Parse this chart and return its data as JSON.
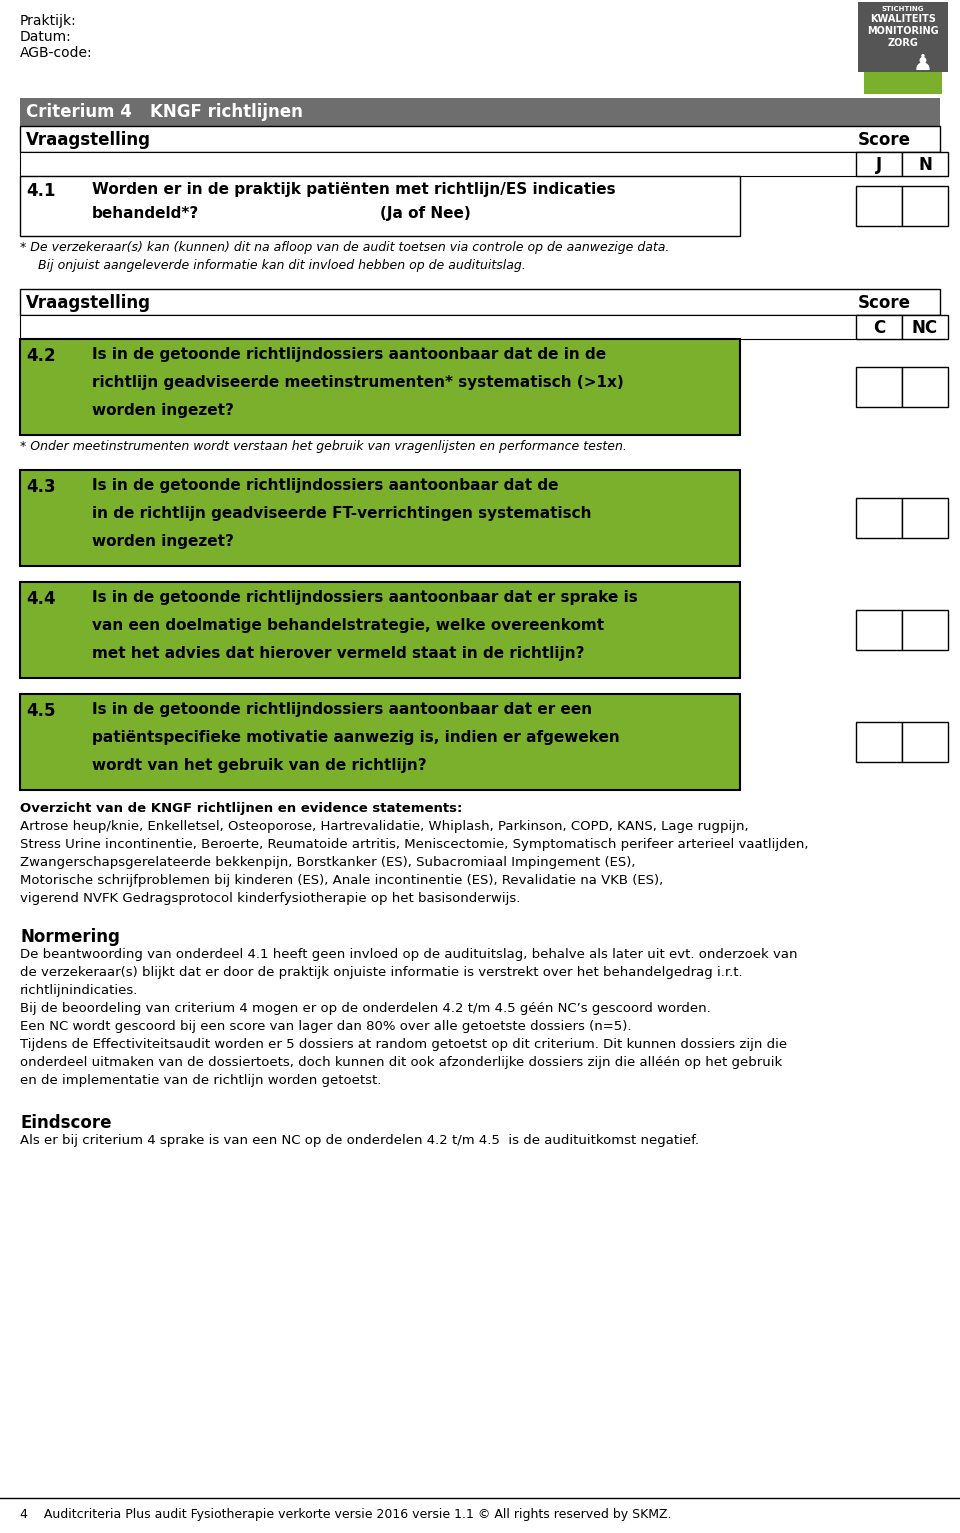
{
  "page_width": 9.6,
  "page_height": 15.33,
  "bg_color": "#ffffff",
  "header_lines": [
    "Praktijk:",
    "Datum:",
    "AGB-code:"
  ],
  "score_label": "Score",
  "q41_num": "4.1",
  "q41_text1": "Worden er in de praktijk patiënten met richtlijn/ES indicaties",
  "q41_text2": "behandeld*?",
  "q41_text3": "(Ja of Nee)",
  "q41_note1": "* De verzekeraar(s) kan (kunnen) dit na afloop van de audit toetsen via controle op de aanwezige data.",
  "q41_note2": "  Bij onjuist aangeleverde informatie kan dit invloed hebben op de audituitslag.",
  "q42_num": "4.2",
  "q42_lines": [
    "Is in de getoonde richtlijndossiers aantoonbaar dat de in de",
    "richtlijn geadviseerde meetinstrumenten* systematisch (>1x)",
    "worden ingezet?"
  ],
  "q42_note": "* Onder meetinstrumenten wordt verstaan het gebruik van vragenlijsten en performance testen.",
  "q43_num": "4.3",
  "q43_lines": [
    "Is in de getoonde richtlijndossiers aantoonbaar dat de",
    "in de richtlijn geadviseerde FT-verrichtingen systematisch",
    "worden ingezet?"
  ],
  "q44_num": "4.4",
  "q44_lines": [
    "Is in de getoonde richtlijndossiers aantoonbaar dat er sprake is",
    "van een doelmatige behandelstrategie, welke overeenkomt",
    "met het advies dat hierover vermeld staat in de richtlijn?"
  ],
  "q45_num": "4.5",
  "q45_lines": [
    "Is in de getoonde richtlijndossiers aantoonbaar dat er een",
    "patiëntspecifieke motivatie aanwezig is, indien er afgeweken",
    "wordt van het gebruik van de richtlijn?"
  ],
  "overzicht_title": "Overzicht van de KNGF richtlijnen en evidence statements:",
  "overzicht_lines": [
    "Artrose heup/knie, Enkelletsel, Osteoporose, Hartrevalidatie, Whiplash, Parkinson, COPD, KANS, Lage rugpijn,",
    "Stress Urine incontinentie, Beroerte, Reumatoide artritis, Meniscectomie, Symptomatisch perifeer arterieel vaatlijden,",
    "Zwangerschapsgerelateerde bekkenpijn, Borstkanker (ES), Subacromiaal Impingement (ES),",
    "Motorische schrijfproblemen bij kinderen (ES), Anale incontinentie (ES), Revalidatie na VKB (ES),",
    "vigerend NVFK Gedragsprotocol kinderfysiotherapie op het basisonderwijs."
  ],
  "normering_title": "Normering",
  "normering_lines": [
    "De beantwoording van onderdeel 4.1 heeft geen invloed op de audituitslag, behalve als later uit evt. onderzoek van",
    "de verzekeraar(s) blijkt dat er door de praktijk onjuiste informatie is verstrekt over het behandelgedrag i.r.t.",
    "richtlijnindicaties.",
    "Bij de beoordeling van criterium 4 mogen er op de onderdelen 4.2 t/m 4.5 géén NC’s gescoord worden.",
    "Een NC wordt gescoord bij een score van lager dan 80% over alle getoetste dossiers (n=5).",
    "Tijdens de Effectiviteitsaudit worden er 5 dossiers at random getoetst op dit criterium. Dit kunnen dossiers zijn die",
    "onderdeel uitmaken van de dossiertoets, doch kunnen dit ook afzonderlijke dossiers zijn die alléén op het gebruik",
    "en de implementatie van de richtlijn worden getoetst."
  ],
  "eindscore_title": "Eindscore",
  "eindscore_text": "Als er bij criterium 4 sprake is van een NC op de onderdelen 4.2 t/m 4.5  is de audituitkomst negatief.",
  "footer_text": "4    Auditcriteria Plus audit Fysiotherapie verkorte versie 2016 versie 1.1 © All rights reserved by SKMZ.",
  "green_color": "#7ab02c",
  "gray_color": "#6e6e6e",
  "black": "#000000",
  "white": "#ffffff"
}
